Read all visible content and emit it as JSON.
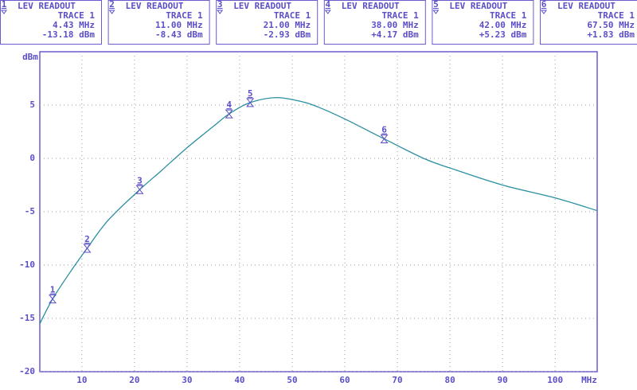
{
  "chart_data": {
    "type": "line",
    "y_label": "dBm",
    "x_label": "MHz",
    "xlim": [
      2,
      108
    ],
    "ylim": [
      -20,
      10
    ],
    "xticks": [
      10,
      20,
      30,
      40,
      50,
      60,
      70,
      80,
      90,
      100
    ],
    "yticks": [
      -20,
      -15,
      -10,
      -5,
      0,
      5
    ],
    "grid": true,
    "frame_color": "#6a5acd",
    "text_color": "#5b4fc8",
    "x": [
      2,
      4.43,
      8,
      11,
      15,
      21,
      25,
      30,
      35,
      38,
      42,
      47,
      52,
      55,
      60,
      67.5,
      75,
      80,
      90,
      100,
      108
    ],
    "series": [
      {
        "color": "#2a8fa0",
        "values": [
          -15.5,
          -13.18,
          -10.5,
          -8.43,
          -5.8,
          -2.93,
          -1.2,
          1.0,
          3.0,
          4.17,
          5.23,
          5.7,
          5.3,
          4.8,
          3.7,
          1.83,
          0.0,
          -0.9,
          -2.5,
          -3.7,
          -4.9
        ]
      }
    ],
    "markers": [
      {
        "label": "1",
        "title": "LEV READOUT",
        "trace": "TRACE 1",
        "x": 4.43,
        "x_label": "4.43 MHz",
        "value": -13.18,
        "value_label": "-13.18 dBm"
      },
      {
        "label": "2",
        "title": "LEV READOUT",
        "trace": "TRACE 1",
        "x": 11,
        "x_label": "11.00 MHz",
        "value": -8.43,
        "value_label": "-8.43 dBm"
      },
      {
        "label": "3",
        "title": "LEV READOUT",
        "trace": "TRACE 1",
        "x": 21,
        "x_label": "21.00 MHz",
        "value": -2.93,
        "value_label": "-2.93 dBm"
      },
      {
        "label": "4",
        "title": "LEV READOUT",
        "trace": "TRACE 1",
        "x": 38,
        "x_label": "38.00 MHz",
        "value": 4.17,
        "value_label": "+4.17 dBm"
      },
      {
        "label": "5",
        "title": "LEV READOUT",
        "trace": "TRACE 1",
        "x": 42,
        "x_label": "42.00 MHz",
        "value": 5.23,
        "value_label": "+5.23 dBm"
      },
      {
        "label": "6",
        "title": "LEV READOUT",
        "trace": "TRACE 1",
        "x": 67.5,
        "x_label": "67.50 MHz",
        "value": 1.83,
        "value_label": "+1.83 dBm"
      }
    ]
  }
}
